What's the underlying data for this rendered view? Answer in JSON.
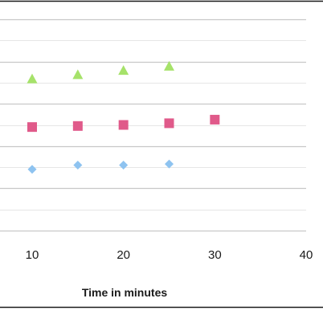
{
  "chart_data": {
    "type": "scatter",
    "xlabel": "Time in minutes",
    "ylabel": "",
    "title": "",
    "xlim": [
      0,
      40
    ],
    "ylim": [
      0,
      10
    ],
    "xticks": [
      10,
      20,
      30,
      40
    ],
    "grid": true,
    "colors": {
      "triangle_series": "#a6e26a",
      "square_series": "#e05a8a",
      "diamond_series": "#8ec3f0",
      "grid": "#c8c8c8",
      "frame": "#1a1a1a",
      "text": "#1a1a1a"
    },
    "series": [
      {
        "marker": "triangle",
        "points": [
          {
            "x": 10,
            "y": 7.2
          },
          {
            "x": 15,
            "y": 7.4
          },
          {
            "x": 20,
            "y": 7.6
          },
          {
            "x": 25,
            "y": 7.8
          }
        ]
      },
      {
        "marker": "square",
        "points": [
          {
            "x": 10,
            "y": 4.9
          },
          {
            "x": 15,
            "y": 4.95
          },
          {
            "x": 20,
            "y": 5.0
          },
          {
            "x": 25,
            "y": 5.08
          },
          {
            "x": 30,
            "y": 5.25
          }
        ]
      },
      {
        "marker": "diamond",
        "points": [
          {
            "x": 10,
            "y": 2.9
          },
          {
            "x": 15,
            "y": 3.1
          },
          {
            "x": 20,
            "y": 3.1
          },
          {
            "x": 25,
            "y": 3.15
          }
        ]
      }
    ]
  }
}
